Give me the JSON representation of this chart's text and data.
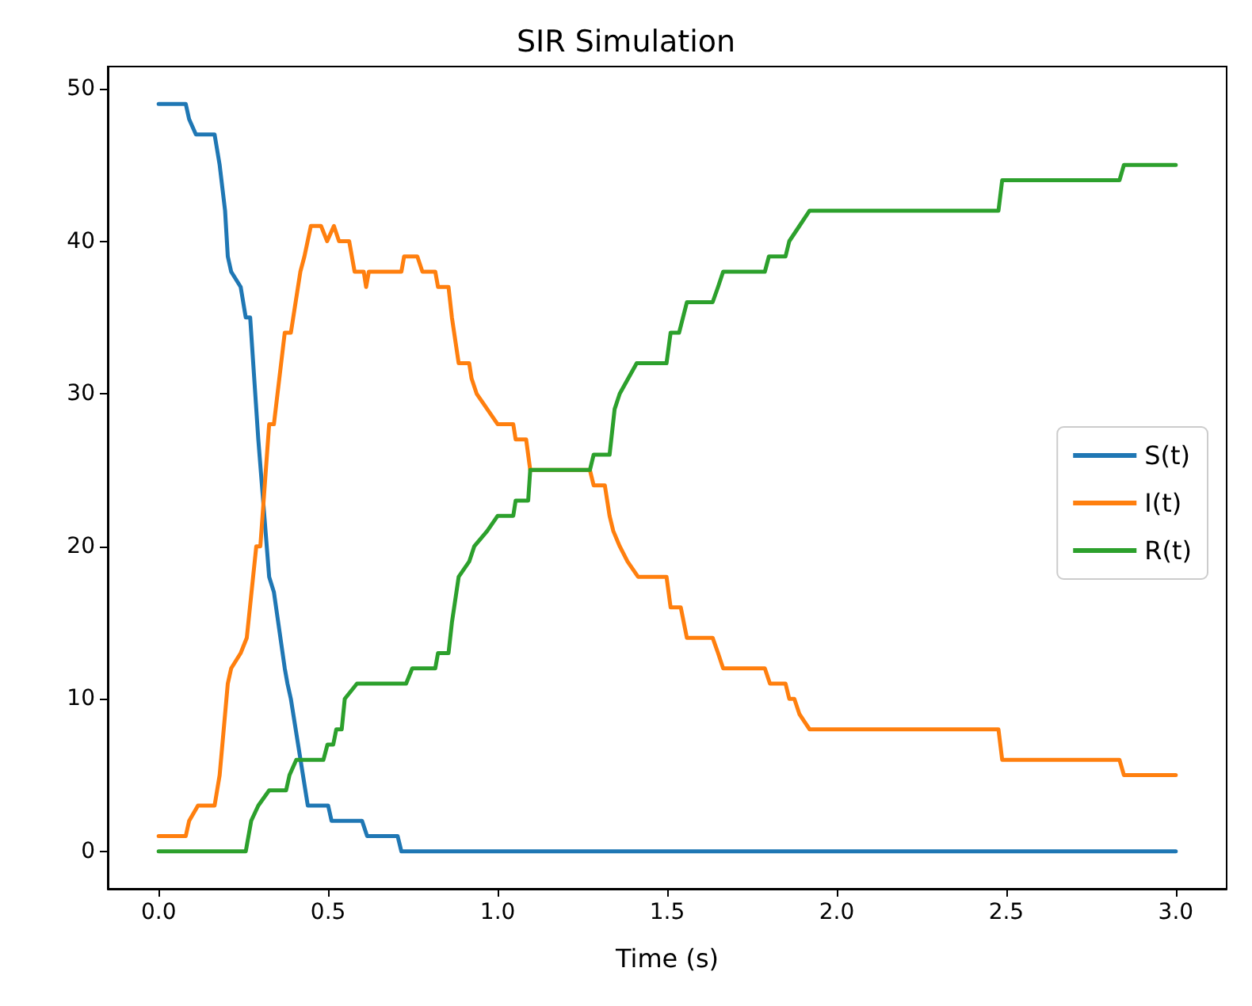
{
  "chart_data": {
    "type": "line",
    "title": "SIR Simulation",
    "xlabel": "Time (s)",
    "xlim": [
      -0.15,
      3.15
    ],
    "ylim": [
      -2.45,
      51.45
    ],
    "xticks": [
      {
        "value": 0,
        "label": "0.0"
      },
      {
        "value": 0.5,
        "label": "0.5"
      },
      {
        "value": 1,
        "label": "1.0"
      },
      {
        "value": 1.5,
        "label": "1.5"
      },
      {
        "value": 2,
        "label": "2.0"
      },
      {
        "value": 2.5,
        "label": "2.5"
      },
      {
        "value": 3,
        "label": "3.0"
      }
    ],
    "yticks": [
      0,
      10,
      20,
      30,
      40,
      50
    ],
    "grid": false,
    "legend": "right",
    "line_style": "solid",
    "marker": "none",
    "series": [
      {
        "name": "S(t)",
        "color": "#1f77b4",
        "x": [
          0,
          0.08,
          0.09,
          0.11,
          0.165,
          0.18,
          0.196,
          0.204,
          0.214,
          0.242,
          0.257,
          0.27,
          0.294,
          0.326,
          0.34,
          0.372,
          0.38,
          0.39,
          0.44,
          0.5,
          0.51,
          0.6,
          0.615,
          0.705,
          0.716,
          3.0
        ],
        "values": [
          49,
          49,
          48,
          47,
          47,
          45,
          42,
          39,
          38,
          37,
          35,
          35,
          27,
          18,
          17,
          12,
          11,
          10,
          3,
          3,
          2,
          2,
          1,
          1,
          0,
          0
        ]
      },
      {
        "name": "I(t)",
        "color": "#ff7f0e",
        "x": [
          0,
          0.08,
          0.09,
          0.116,
          0.165,
          0.18,
          0.204,
          0.214,
          0.242,
          0.26,
          0.288,
          0.3,
          0.326,
          0.34,
          0.372,
          0.39,
          0.418,
          0.43,
          0.449,
          0.479,
          0.497,
          0.517,
          0.532,
          0.562,
          0.578,
          0.605,
          0.612,
          0.62,
          0.716,
          0.724,
          0.763,
          0.778,
          0.816,
          0.824,
          0.855,
          0.865,
          0.885,
          0.916,
          0.923,
          0.938,
          0.969,
          1.0,
          1.046,
          1.053,
          1.084,
          1.096,
          1.272,
          1.283,
          1.316,
          1.33,
          1.341,
          1.36,
          1.383,
          1.414,
          1.498,
          1.51,
          1.54,
          1.558,
          1.634,
          1.65,
          1.665,
          1.788,
          1.803,
          1.849,
          1.86,
          1.875,
          1.89,
          1.92,
          2.477,
          2.488,
          2.834,
          2.847,
          3.0
        ],
        "values": [
          1,
          1,
          2,
          3,
          3,
          5,
          11,
          12,
          13,
          14,
          20,
          20,
          28,
          28,
          34,
          34,
          38,
          39,
          41,
          41,
          40,
          41,
          40,
          40,
          38,
          38,
          37,
          38,
          38,
          39,
          39,
          38,
          38,
          37,
          37,
          35,
          32,
          32,
          31,
          30,
          29,
          28,
          28,
          27,
          27,
          25,
          25,
          24,
          24,
          22,
          21,
          20,
          19,
          18,
          18,
          16,
          16,
          14,
          14,
          13,
          12,
          12,
          11,
          11,
          10,
          10,
          9,
          8,
          8,
          6,
          6,
          5,
          5
        ]
      },
      {
        "name": "R(t)",
        "color": "#2ca02c",
        "x": [
          0,
          0.257,
          0.273,
          0.294,
          0.326,
          0.376,
          0.386,
          0.406,
          0.486,
          0.498,
          0.515,
          0.524,
          0.54,
          0.549,
          0.585,
          0.73,
          0.748,
          0.816,
          0.824,
          0.855,
          0.865,
          0.885,
          0.916,
          0.931,
          0.969,
          1.0,
          1.046,
          1.053,
          1.09,
          1.096,
          1.272,
          1.283,
          1.33,
          1.345,
          1.36,
          1.385,
          1.41,
          1.498,
          1.51,
          1.535,
          1.558,
          1.634,
          1.65,
          1.665,
          1.788,
          1.8,
          1.849,
          1.86,
          1.89,
          1.92,
          2.477,
          2.488,
          2.834,
          2.847,
          3.0
        ],
        "values": [
          0,
          0,
          2,
          3,
          4,
          4,
          5,
          6,
          6,
          7,
          7,
          8,
          8,
          10,
          11,
          11,
          12,
          12,
          13,
          13,
          15,
          18,
          19,
          20,
          21,
          22,
          22,
          23,
          23,
          25,
          25,
          26,
          26,
          29,
          30,
          31,
          32,
          32,
          34,
          34,
          36,
          36,
          37,
          38,
          38,
          39,
          39,
          40,
          41,
          42,
          42,
          44,
          44,
          45,
          45
        ]
      }
    ]
  }
}
